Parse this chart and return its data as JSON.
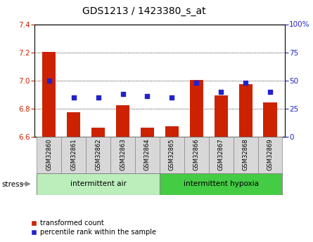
{
  "title": "GDS1213 / 1423380_s_at",
  "samples": [
    "GSM32860",
    "GSM32861",
    "GSM32862",
    "GSM32863",
    "GSM32864",
    "GSM32865",
    "GSM32866",
    "GSM32867",
    "GSM32868",
    "GSM32869"
  ],
  "transformed_count": [
    7.205,
    6.775,
    6.665,
    6.825,
    6.665,
    6.675,
    7.005,
    6.895,
    6.975,
    6.845
  ],
  "percentile_rank": [
    50,
    35,
    35,
    38,
    36,
    35,
    48,
    40,
    48,
    40
  ],
  "ylim": [
    6.6,
    7.4
  ],
  "yticks": [
    6.6,
    6.8,
    7.0,
    7.2,
    7.4
  ],
  "right_ylim": [
    0,
    100
  ],
  "right_yticks": [
    0,
    25,
    50,
    75,
    100
  ],
  "bar_color": "#cc2200",
  "dot_color": "#2222cc",
  "bg_color": "#ffffff",
  "group1_color": "#bbeebb",
  "group2_color": "#44cc44",
  "group1_label": "intermittent air",
  "group2_label": "intermittent hypoxia",
  "group1_samples": [
    0,
    1,
    2,
    3,
    4
  ],
  "group2_samples": [
    5,
    6,
    7,
    8,
    9
  ],
  "stress_label": "stress",
  "legend_red": "transformed count",
  "legend_blue": "percentile rank within the sample"
}
